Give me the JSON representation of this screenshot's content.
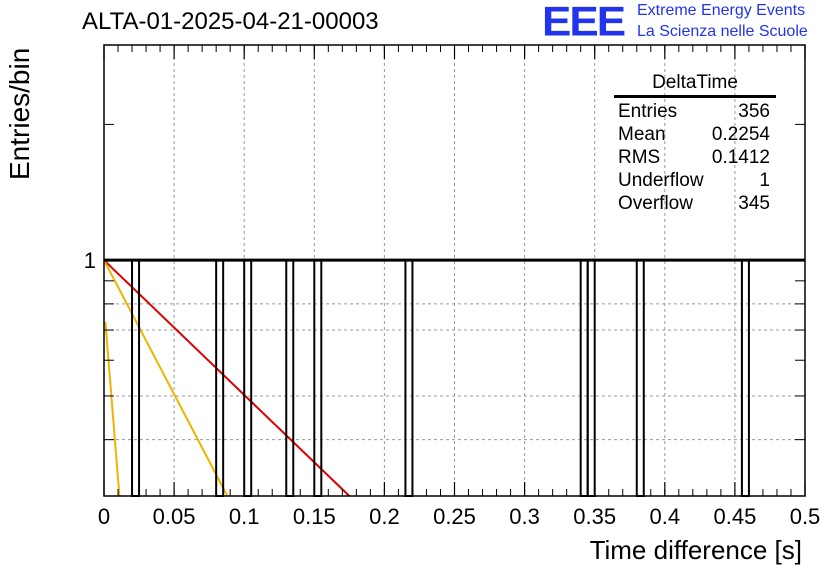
{
  "chart_data": {
    "type": "bar",
    "title": "ALTA-01-2025-04-21-00003",
    "xlabel": "Time difference [s]",
    "ylabel": "Entries/bin",
    "xlim": [
      0,
      0.5
    ],
    "ylim": [
      0.3,
      3
    ],
    "log_y": true,
    "grid": true,
    "x_ticks": [
      "0",
      "0.05",
      "0.1",
      "0.15",
      "0.2",
      "0.25",
      "0.3",
      "0.35",
      "0.4",
      "0.45",
      "0.5"
    ],
    "y_ticks": [
      "1"
    ],
    "bin_width": 0.005,
    "bin_starts": [
      0.02,
      0.08,
      0.1,
      0.13,
      0.15,
      0.215,
      0.34,
      0.345,
      0.38,
      0.455
    ],
    "bin_values": [
      1,
      1,
      1,
      1,
      1,
      1,
      1,
      1,
      1,
      1
    ],
    "fit_lines": [
      {
        "color": "#dd0000",
        "points": [
          [
            0,
            1
          ],
          [
            0.175,
            0.3
          ]
        ]
      },
      {
        "color": "#f0b400",
        "points": [
          [
            0,
            1
          ],
          [
            0.088,
            0.3
          ]
        ]
      },
      {
        "color": "#f0b400",
        "points": [
          [
            0.001,
            0.73
          ],
          [
            0.011,
            0.3
          ]
        ]
      }
    ],
    "stats": {
      "title": "DeltaTime",
      "rows": [
        {
          "label": "Entries",
          "value": "356"
        },
        {
          "label": "Mean",
          "value": "0.2254"
        },
        {
          "label": "RMS",
          "value": "0.1412"
        },
        {
          "label": "Underflow",
          "value": "1"
        },
        {
          "label": "Overflow",
          "value": "345"
        }
      ]
    },
    "logo": {
      "mark": "EEE",
      "line1": "Extreme Energy Events",
      "line2": "La Scienza nelle Scuole"
    }
  }
}
